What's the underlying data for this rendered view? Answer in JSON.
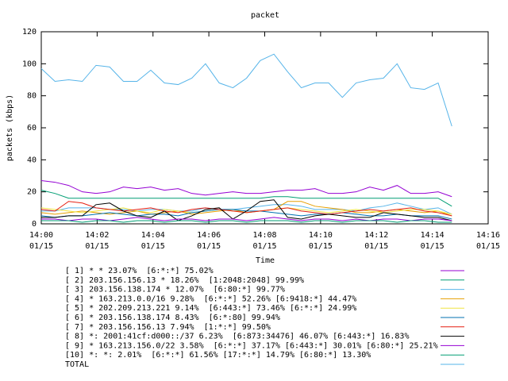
{
  "chart_data": {
    "type": "line",
    "title": "packet",
    "ylabel": "packets (kbps)",
    "xlabel": "Time",
    "xlim": [
      0,
      16
    ],
    "ylim": [
      0,
      120
    ],
    "xticks": [
      {
        "value": 0,
        "label": "14:00",
        "date": "01/15"
      },
      {
        "value": 2,
        "label": "14:02",
        "date": "01/15"
      },
      {
        "value": 4,
        "label": "14:04",
        "date": "01/15"
      },
      {
        "value": 6,
        "label": "14:06",
        "date": "01/15"
      },
      {
        "value": 8,
        "label": "14:08",
        "date": "01/15"
      },
      {
        "value": 10,
        "label": "14:10",
        "date": "01/15"
      },
      {
        "value": 12,
        "label": "14:12",
        "date": "01/15"
      },
      {
        "value": 14,
        "label": "14:14",
        "date": "01/15"
      },
      {
        "value": 16,
        "label": "14:16",
        "date": "01/15"
      }
    ],
    "yticks": [
      0,
      20,
      40,
      60,
      80,
      100,
      120
    ],
    "x": [
      0,
      0.49,
      0.98,
      1.47,
      1.96,
      2.45,
      2.94,
      3.43,
      3.92,
      4.41,
      4.9,
      5.39,
      5.88,
      6.37,
      6.86,
      7.35,
      7.84,
      8.33,
      8.82,
      9.31,
      9.8,
      10.29,
      10.78,
      11.27,
      11.76,
      12.25,
      12.74,
      13.23,
      13.72,
      14.21,
      14.7
    ],
    "series": [
      {
        "name": "[ 1] * * 23.07%  [6:*:*] 75.02%",
        "color": "#9400d3",
        "values": [
          27,
          26,
          24,
          20,
          19,
          20,
          23,
          22,
          23,
          21,
          22,
          19,
          18,
          19,
          20,
          19,
          19,
          20,
          21,
          21,
          22,
          19,
          19,
          20,
          23,
          21,
          24,
          19,
          19,
          20,
          17
        ]
      },
      {
        "name": "[ 2] 203.156.156.13 * 18.26%  [1:2048:2048] 99.99%",
        "color": "#009e73",
        "values": [
          21,
          19,
          16,
          16,
          16,
          16,
          16,
          16,
          16,
          16,
          16,
          16,
          16,
          16,
          16,
          16,
          16,
          17,
          17,
          16,
          16,
          16,
          16,
          16,
          16,
          16,
          16,
          16,
          16,
          16,
          11
        ]
      },
      {
        "name": "[ 3] 203.156.138.174 * 12.07%  [6:80:*] 99.77%",
        "color": "#56b4e9",
        "values": [
          8,
          8,
          10,
          10,
          10,
          9,
          9,
          8,
          9,
          9,
          8,
          8,
          10,
          9,
          9,
          10,
          11,
          12,
          12,
          11,
          9,
          9,
          9,
          8,
          10,
          11,
          13,
          11,
          9,
          10,
          6
        ]
      },
      {
        "name": "[ 4] * 163.213.0.0/16 9.28%  [6:*:*] 52.26% [6:9418:*] 44.47%",
        "color": "#e69f00",
        "values": [
          7,
          6,
          7,
          8,
          7,
          6,
          7,
          8,
          6,
          7,
          8,
          6,
          7,
          8,
          9,
          7,
          8,
          9,
          14,
          14,
          11,
          10,
          9,
          7,
          7,
          8,
          9,
          8,
          7,
          8,
          5
        ]
      },
      {
        "name": "[ 5] * 202.209.213.221 9.14%  [6:443:*] 73.46% [6:*:*] 24.99%",
        "color": "#f0e442",
        "values": [
          10,
          9,
          8,
          7,
          8,
          9,
          10,
          8,
          7,
          9,
          8,
          7,
          8,
          9,
          8,
          7,
          8,
          9,
          10,
          9,
          8,
          7,
          8,
          9,
          8,
          7,
          8,
          9,
          9,
          8,
          6
        ]
      },
      {
        "name": "[ 6] * 203.156.138.174 8.43%  [6:*:80] 99.94%",
        "color": "#0072b2",
        "values": [
          5,
          4,
          5,
          5,
          6,
          7,
          6,
          5,
          6,
          6,
          5,
          7,
          8,
          9,
          9,
          8,
          8,
          7,
          6,
          5,
          6,
          6,
          7,
          6,
          5,
          5,
          6,
          5,
          5,
          5,
          3
        ]
      },
      {
        "name": "[ 7] * 203.156.156.13 7.94%  [1:*:*] 99.50%",
        "color": "#e51e10",
        "values": [
          9,
          8,
          14,
          13,
          10,
          9,
          8,
          9,
          10,
          8,
          7,
          9,
          10,
          9,
          8,
          7,
          8,
          9,
          10,
          8,
          7,
          6,
          7,
          8,
          9,
          8,
          9,
          10,
          8,
          7,
          5
        ]
      },
      {
        "name": "[ 8] *: 2001:41cf:d000::/37 6.23%  [6:873:34476] 46.07% [6:443:*] 16.83%",
        "color": "#000000",
        "values": [
          4,
          4,
          5,
          5,
          12,
          13,
          8,
          5,
          4,
          8,
          2,
          5,
          9,
          10,
          3,
          8,
          14,
          15,
          4,
          3,
          5,
          6,
          5,
          4,
          4,
          7,
          6,
          5,
          4,
          4,
          2
        ]
      },
      {
        "name": "[ 9] * 163.213.156.0/22 3.58%  [6:*:*] 37.17% [6:443:*] 30.01% [6:80:*] 25.21%",
        "color": "#9400d3",
        "values": [
          3,
          3,
          2,
          3,
          3,
          2,
          3,
          4,
          3,
          2,
          3,
          3,
          2,
          3,
          3,
          2,
          3,
          4,
          3,
          2,
          3,
          3,
          2,
          3,
          2,
          3,
          3,
          2,
          3,
          3,
          2
        ]
      },
      {
        "name": "[10] *: *: 2.01%  [6:*:*] 61.56% [17:*:*] 14.79% [6:80:*] 13.30%",
        "color": "#009e73",
        "values": [
          2,
          2,
          2,
          1,
          2,
          2,
          1,
          2,
          2,
          1,
          2,
          2,
          1,
          2,
          2,
          1,
          2,
          2,
          2,
          1,
          2,
          2,
          1,
          2,
          2,
          2,
          1,
          2,
          2,
          1,
          1
        ]
      },
      {
        "name": "TOTAL",
        "color": "#56b4e9",
        "values": [
          97,
          89,
          90,
          89,
          99,
          98,
          89,
          89,
          96,
          88,
          87,
          91,
          100,
          88,
          85,
          91,
          102,
          106,
          95,
          85,
          88,
          88,
          79,
          88,
          90,
          91,
          100,
          85,
          84,
          88,
          61
        ]
      }
    ]
  }
}
